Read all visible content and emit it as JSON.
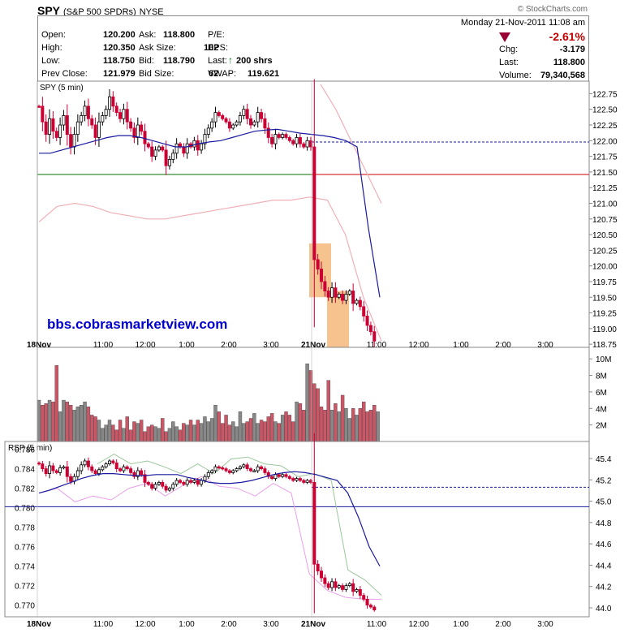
{
  "header": {
    "symbol": "SPY",
    "name": "(S&P 500 SPDRs)",
    "exchange": "NYSE",
    "brand": "© StockCharts.com"
  },
  "quote": {
    "left": [
      {
        "label": "Open:",
        "value": "120.200"
      },
      {
        "label": "High:",
        "value": "120.350"
      },
      {
        "label": "Low:",
        "value": "118.750"
      },
      {
        "label": "Prev Close:",
        "value": "121.979"
      }
    ],
    "middle": [
      {
        "label": "Ask:",
        "value": "118.800"
      },
      {
        "label": "Ask Size:",
        "value": "102"
      },
      {
        "label": "Bid:",
        "value": "118.790"
      },
      {
        "label": "Bid Size:",
        "value": "62"
      }
    ],
    "right_labels": [
      "P/E:",
      "EPS:",
      "Last:",
      "VWAP:"
    ],
    "last_value": "200 shrs",
    "vwap_value": "119.621",
    "date_line": "Monday  21-Nov-2011  11:08 am",
    "change_pct": "-2.61%",
    "change_label": "Chg:",
    "change_value": "-3.179",
    "last_label": "Last:",
    "last_price": "118.800",
    "volume_label": "Volume:",
    "volume_value": "79,340,568"
  },
  "price_panel": {
    "label": "SPY (5 min)"
  },
  "watermark": "bbs.cobrasmarketview.com",
  "volume_panel": {
    "ticks": [
      "10M",
      "8M",
      "6M",
      "4M",
      "2M"
    ]
  },
  "rsp_panel": {
    "label": "RSP (5 min)",
    "left_ticks": [
      "0.786",
      "0.784",
      "0.782",
      "0.780",
      "0.778",
      "0.776",
      "0.774",
      "0.772",
      "0.770"
    ],
    "right_ticks": [
      "45.4",
      "45.2",
      "45.0",
      "44.8",
      "44.6",
      "44.4",
      "44.2",
      "44.0"
    ]
  },
  "x_labels": [
    "18Nov",
    "11:00",
    "12:00",
    "1:00",
    "2:00",
    "3:00",
    "21Nov",
    "11:00",
    "12:00",
    "1:00",
    "2:00",
    "3:00"
  ],
  "colors": {
    "up_candle": "#000000",
    "down_candle": "#cc0033",
    "ma": "#1a1aa0",
    "band": "#f0b0b8",
    "highlight": "#f5b87a",
    "watermark": "#0000cc"
  },
  "chart_data": [
    {
      "type": "candlestick",
      "title": "SPY (5 min)",
      "ylim": [
        118.7,
        122.95
      ],
      "y_ticks": [
        "122.75",
        "122.50",
        "122.25",
        "122.00",
        "121.75",
        "121.50",
        "121.25",
        "121.00",
        "120.75",
        "120.50",
        "120.25",
        "120.00",
        "119.75",
        "119.50",
        "119.25",
        "119.00",
        "118.75"
      ],
      "close": [
        122.55,
        122.3,
        122.1,
        122.35,
        122.15,
        122.05,
        122.25,
        122.4,
        122.1,
        121.9,
        122.1,
        122.3,
        122.4,
        122.55,
        122.35,
        122.25,
        122.05,
        122.3,
        122.4,
        122.5,
        122.7,
        122.55,
        122.45,
        122.35,
        122.5,
        122.3,
        122.2,
        122.05,
        122.25,
        122.15,
        121.95,
        121.9,
        121.75,
        121.85,
        121.9,
        121.85,
        121.6,
        121.7,
        121.8,
        121.95,
        121.9,
        121.8,
        121.95,
        121.9,
        122.0,
        121.85,
        121.95,
        122.1,
        122.2,
        122.3,
        122.45,
        122.4,
        122.35,
        122.3,
        122.2,
        122.25,
        122.3,
        122.4,
        122.5,
        122.35,
        122.25,
        122.3,
        122.45,
        122.35,
        122.2,
        122.05,
        121.95,
        122.1,
        122.05,
        122.1,
        122.05,
        122.0,
        121.95,
        122.05,
        121.95,
        121.9,
        122.0,
        121.9,
        120.1,
        119.95,
        119.75,
        119.6,
        119.5,
        119.65,
        119.5,
        119.55,
        119.45,
        119.55,
        119.6,
        119.4,
        119.45,
        119.35,
        119.2,
        119.05,
        118.95,
        118.8
      ],
      "series": [
        {
          "name": "EMA",
          "values": [
            121.8,
            121.8,
            121.85,
            121.9,
            121.95,
            122.0,
            122.05,
            122.08,
            122.08,
            122.05,
            122.0,
            121.95,
            121.9,
            121.9,
            121.95,
            121.98,
            122.0,
            122.05,
            122.1,
            122.15,
            122.17,
            122.18,
            122.15,
            122.12,
            122.1,
            122.08,
            122.05,
            122.0,
            121.9,
            120.6,
            119.5
          ]
        },
        {
          "name": "Upper Band",
          "values": [
            122.9,
            122.5,
            122.0,
            121.5,
            121.0
          ]
        },
        {
          "name": "Lower Band",
          "values": [
            120.7,
            120.95,
            121.0,
            120.95,
            120.85,
            120.8,
            120.75,
            120.75,
            120.8,
            120.85,
            120.9,
            120.95,
            121.0,
            121.05,
            121.05,
            121.1,
            121.05,
            120.5,
            119.5,
            118.8
          ]
        }
      ],
      "reference_lines": [
        {
          "value": 121.979,
          "style": "dashed",
          "color": "#1a1aa0"
        },
        {
          "value": 121.46,
          "style": "solid",
          "color": "#007000 / #cc0000"
        }
      ]
    },
    {
      "type": "bar",
      "title": "Volume",
      "ylim": [
        0,
        11000000
      ],
      "values_millions": [
        5.0,
        4.4,
        4.6,
        5.0,
        4.8,
        9.2,
        3.6,
        5.0,
        4.8,
        4.4,
        3.8,
        4.2,
        4.4,
        4.8,
        4.2,
        3.2,
        3.0,
        2.6,
        1.6,
        2.0,
        2.6,
        2.0,
        1.4,
        2.6,
        1.6,
        3.0,
        1.4,
        2.4,
        2.2,
        2.6,
        1.2,
        1.8,
        2.0,
        1.8,
        1.6,
        2.8,
        1.2,
        1.6,
        2.4,
        1.8,
        1.4,
        2.2,
        2.0,
        2.6,
        2.0,
        2.6,
        2.2,
        3.0,
        2.4,
        2.8,
        4.4,
        3.6,
        2.2,
        3.2,
        2.0,
        2.4,
        1.8,
        3.6,
        2.2,
        2.4,
        2.8,
        3.4,
        2.2,
        2.6,
        2.4,
        3.0,
        3.4,
        2.4,
        2.2,
        3.2,
        3.6,
        3.2,
        2.4,
        4.8,
        4.6,
        3.8,
        9.4,
        8.6,
        7.0,
        6.4,
        4.2,
        3.8,
        7.4,
        3.8,
        4.6,
        3.6,
        5.6,
        4.0,
        2.8,
        4.0,
        3.2,
        4.0,
        4.8,
        3.6,
        3.8,
        4.4,
        3.6
      ]
    },
    {
      "type": "candlestick",
      "title": "RSP (5 min)",
      "ylim": [
        0.7688,
        0.7868
      ],
      "close": [
        0.7845,
        0.784,
        0.7835,
        0.7843,
        0.7838,
        0.7836,
        0.7841,
        0.7842,
        0.7832,
        0.7827,
        0.7832,
        0.7838,
        0.7844,
        0.7848,
        0.7842,
        0.7838,
        0.7835,
        0.7839,
        0.7842,
        0.7845,
        0.7848,
        0.7846,
        0.784,
        0.7838,
        0.7842,
        0.784,
        0.7836,
        0.7832,
        0.7838,
        0.7834,
        0.7826,
        0.7824,
        0.782,
        0.7824,
        0.7826,
        0.7822,
        0.7818,
        0.782,
        0.7824,
        0.7828,
        0.7826,
        0.7824,
        0.7828,
        0.7826,
        0.7828,
        0.7824,
        0.7828,
        0.7832,
        0.7836,
        0.7838,
        0.7842,
        0.7841,
        0.784,
        0.7838,
        0.7836,
        0.7838,
        0.784,
        0.7842,
        0.7844,
        0.784,
        0.7838,
        0.7838,
        0.7842,
        0.784,
        0.7836,
        0.7832,
        0.783,
        0.7834,
        0.7832,
        0.7834,
        0.7832,
        0.783,
        0.7828,
        0.783,
        0.7828,
        0.7826,
        0.7828,
        0.7826,
        0.7742,
        0.7735,
        0.7728,
        0.7722,
        0.7718,
        0.7724,
        0.7718,
        0.772,
        0.7716,
        0.772,
        0.7722,
        0.7714,
        0.7716,
        0.771,
        0.7706,
        0.77,
        0.7698,
        0.7695
      ],
      "series": [
        {
          "name": "EMA",
          "values": [
            0.7815,
            0.7818,
            0.7822,
            0.7826,
            0.783,
            0.7833,
            0.7835,
            0.7835,
            0.7834,
            0.7833,
            0.7833,
            0.7834,
            0.7834,
            0.7834,
            0.7831,
            0.7829,
            0.7826,
            0.7825,
            0.7825,
            0.7826,
            0.7828,
            0.7831,
            0.7834,
            0.7836,
            0.7837,
            0.7836,
            0.7834,
            0.7831,
            0.7828,
            0.7815,
            0.779,
            0.776,
            0.774
          ]
        },
        {
          "name": "Upper Band",
          "values": [
            0.7845,
            0.7855,
            0.7845,
            0.7848,
            0.7842,
            0.7835,
            0.7845,
            0.7835,
            0.785,
            0.7852,
            0.7845,
            0.7843,
            0.7832,
            0.7835,
            0.7828,
            0.7736,
            0.7726,
            0.771
          ]
        },
        {
          "name": "Lower Band",
          "values": [
            0.7815,
            0.782,
            0.7806,
            0.7812,
            0.7808,
            0.782,
            0.7825,
            0.7812,
            0.7823,
            0.7832,
            0.7822,
            0.782,
            0.7812,
            0.7825,
            0.7815,
            0.7732,
            0.7715,
            0.7708,
            0.7706,
            0.7706
          ]
        }
      ],
      "reference_lines": [
        {
          "value": 0.7821,
          "style": "dashed",
          "color": "#1a1aa0"
        },
        {
          "value": 0.7801,
          "style": "solid",
          "color": "#1a1aa0"
        }
      ]
    }
  ]
}
